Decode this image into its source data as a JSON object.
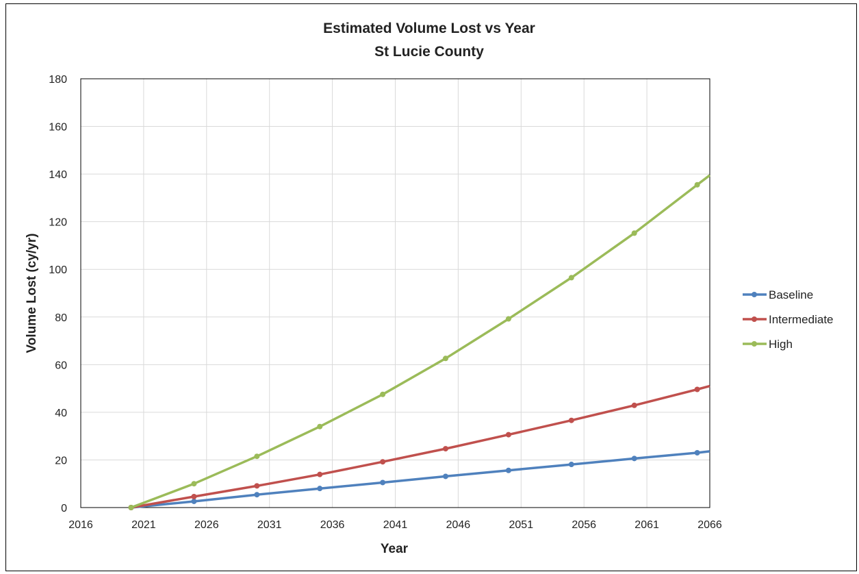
{
  "chart_data": {
    "type": "line",
    "title": "Estimated Volume Lost vs Year",
    "subtitle": "St Lucie County",
    "xlabel": "Year",
    "ylabel": "Volume Lost (cy/yr)",
    "xlim": [
      2016,
      2066
    ],
    "ylim": [
      0,
      180
    ],
    "x_ticks": [
      2016,
      2021,
      2026,
      2031,
      2036,
      2041,
      2046,
      2051,
      2056,
      2061,
      2066
    ],
    "y_ticks": [
      0,
      20,
      40,
      60,
      80,
      100,
      120,
      140,
      160,
      180
    ],
    "grid": true,
    "legend_position": "right",
    "series": [
      {
        "name": "Baseline",
        "color": "#4f81bd",
        "x": [
          2020,
          2025,
          2030,
          2035,
          2040,
          2045,
          2050,
          2055,
          2060,
          2065,
          2066
        ],
        "values": [
          0,
          2.6,
          5.4,
          8.0,
          10.5,
          13.1,
          15.6,
          18.1,
          20.6,
          23.0,
          23.6
        ]
      },
      {
        "name": "Intermediate",
        "color": "#c0504d",
        "x": [
          2020,
          2025,
          2030,
          2035,
          2040,
          2045,
          2050,
          2055,
          2060,
          2065,
          2066
        ],
        "values": [
          0,
          4.6,
          9.1,
          13.9,
          19.2,
          24.7,
          30.6,
          36.6,
          42.9,
          49.6,
          51.0
        ]
      },
      {
        "name": "High",
        "color": "#9bbb59",
        "x": [
          2020,
          2025,
          2030,
          2035,
          2040,
          2045,
          2050,
          2055,
          2060,
          2065,
          2066
        ],
        "values": [
          0,
          10.0,
          21.5,
          34.0,
          47.5,
          62.6,
          79.2,
          96.5,
          115.2,
          135.5,
          139.5
        ]
      }
    ]
  }
}
